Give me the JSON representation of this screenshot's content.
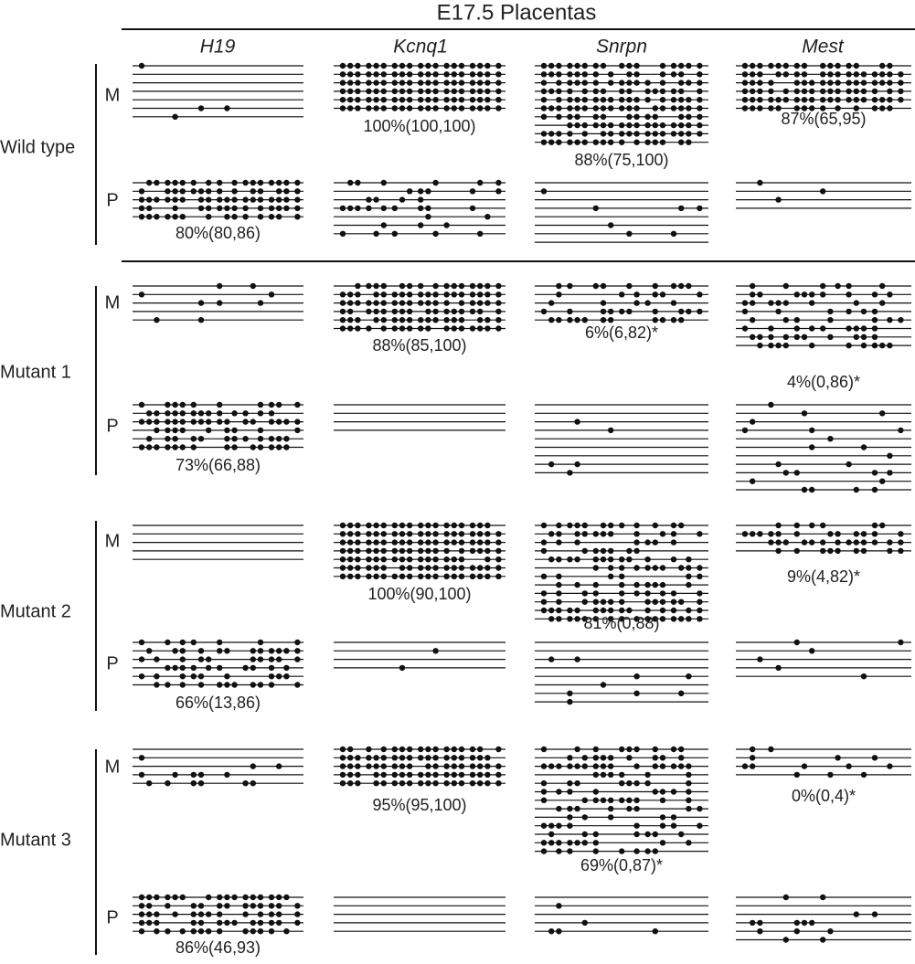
{
  "title": "E17.5 Placentas",
  "genes": [
    "H19",
    "Kcnq1",
    "Snrpn",
    "Mest"
  ],
  "groups": [
    {
      "label": "Wild type",
      "rows": [
        {
          "allele": "M",
          "percentages": [
            null,
            "100%(100,100)",
            "88%(75,100)",
            "87%(65,95)"
          ]
        },
        {
          "allele": "P",
          "percentages": [
            "80%(80,86)",
            null,
            null,
            null
          ]
        }
      ]
    },
    {
      "label": "Mutant 1",
      "rows": [
        {
          "allele": "M",
          "percentages": [
            null,
            "88%(85,100)",
            "6%(6,82)*",
            "4%(0,86)*"
          ]
        },
        {
          "allele": "P",
          "percentages": [
            "73%(66,88)",
            null,
            null,
            null
          ]
        }
      ]
    },
    {
      "label": "Mutant 2",
      "rows": [
        {
          "allele": "M",
          "percentages": [
            null,
            "100%(90,100)",
            "81%(0,88)",
            "9%(4,82)*"
          ]
        },
        {
          "allele": "P",
          "percentages": [
            "66%(13,86)",
            null,
            null,
            null
          ]
        }
      ]
    },
    {
      "label": "Mutant 3",
      "rows": [
        {
          "allele": "M",
          "percentages": [
            null,
            "95%(95,100)",
            "69%(0,87)*",
            "0%(0,4)*"
          ]
        },
        {
          "allele": "P",
          "percentages": [
            "86%(46,93)",
            null,
            null,
            null
          ]
        }
      ]
    }
  ]
}
